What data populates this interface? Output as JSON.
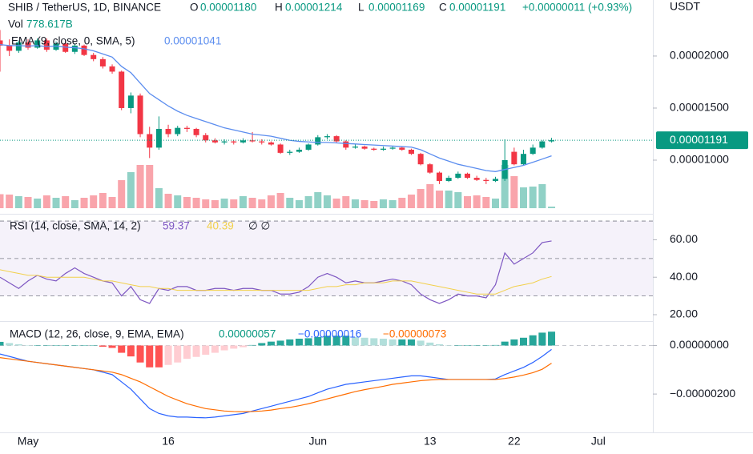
{
  "chart_data": [
    {
      "type": "candlestick",
      "title": "SHIB / TetherUS, 1D, BINANCE",
      "ohlc_legend": [
        {
          "key": "O",
          "value": "0.00001180"
        },
        {
          "key": "H",
          "value": "0.00001214"
        },
        {
          "key": "L",
          "value": "0.00001169"
        },
        {
          "key": "C",
          "value": "0.00001191"
        }
      ],
      "change": "+0.00000011 (+0.93%)",
      "currency": "USDT",
      "up_color": "#089981",
      "down_color": "#f23645",
      "categories": [
        null,
        null,
        null,
        "May",
        null,
        null,
        null,
        null,
        null,
        null,
        null,
        null,
        null,
        null,
        null,
        null,
        null,
        null,
        "16",
        null,
        null,
        null,
        null,
        null,
        null,
        null,
        null,
        null,
        null,
        null,
        null,
        null,
        null,
        null,
        "Jun",
        null,
        null,
        null,
        null,
        null,
        null,
        null,
        null,
        null,
        null,
        null,
        "13",
        null,
        null,
        null,
        null,
        null,
        null,
        null,
        null,
        "22",
        null,
        null,
        null,
        null,
        null,
        null,
        null,
        null,
        "Jul"
      ],
      "open": [
        2.15e-05,
        2.1e-05,
        2.05e-05,
        2.13e-05,
        2.08e-05,
        2.15e-05,
        2.06e-05,
        2.12e-05,
        2.04e-05,
        2.1e-05,
        2.01e-05,
        1.97e-05,
        1.9e-05,
        1.85e-05,
        1.5e-05,
        1.62e-05,
        1.25e-05,
        1.12e-05,
        1.3e-05,
        1.25e-05,
        1.31e-05,
        1.3e-05,
        1.24e-05,
        1.19e-05,
        1.17e-05,
        1.18e-05,
        1.17e-05,
        1.19e-05,
        1.18e-05,
        1.17e-05,
        1.15e-05,
        1.07e-05,
        1.08e-05,
        1.1e-05,
        1.15e-05,
        1.22e-05,
        1.23e-05,
        1.18e-05,
        1.12e-05,
        1.13e-05,
        1.11e-05,
        1.1e-05,
        1.11e-05,
        1.12e-05,
        1.1e-05,
        1.06e-05,
        9.6e-06,
        8.8e-06,
        8e-06,
        8.3e-06,
        8.7e-06,
        8.3e-06,
        8.1e-06,
        8e-06,
        8.2e-06,
        1.08e-05,
        9.6e-06,
        1.06e-05,
        1.12e-05,
        1.18e-05,
        null,
        null,
        null,
        null,
        null
      ],
      "high": [
        2.25e-05,
        2.16e-05,
        2.15e-05,
        2.16e-05,
        2.17e-05,
        2.17e-05,
        2.14e-05,
        2.15e-05,
        2.12e-05,
        2.11e-05,
        2.03e-05,
        1.99e-05,
        1.92e-05,
        1.86e-05,
        1.65e-05,
        1.64e-05,
        1.32e-05,
        1.42e-05,
        1.34e-05,
        1.33e-05,
        1.33e-05,
        1.31e-05,
        1.26e-05,
        1.21e-05,
        1.2e-05,
        1.19e-05,
        1.21e-05,
        1.27e-05,
        1.2e-05,
        1.18e-05,
        1.16e-05,
        1.1e-05,
        1.12e-05,
        1.16e-05,
        1.24e-05,
        1.25e-05,
        1.24e-05,
        1.19e-05,
        1.15e-05,
        1.14e-05,
        1.12e-05,
        1.13e-05,
        1.13e-05,
        1.13e-05,
        1.11e-05,
        1.07e-05,
        9.7e-06,
        8.9e-06,
        8.5e-06,
        8.9e-06,
        8.8e-06,
        8.5e-06,
        8.3e-06,
        8.4e-06,
        1.2e-05,
        1.12e-05,
        1.1e-05,
        1.15e-05,
        1.19e-05,
        1.214e-05,
        null,
        null,
        null,
        null,
        null
      ],
      "low": [
        1.85e-05,
        2e-05,
        2.03e-05,
        2.06e-05,
        2.07e-05,
        2.04e-05,
        2.05e-05,
        2.03e-05,
        2.02e-05,
        2e-05,
        1.95e-05,
        1.88e-05,
        1.83e-05,
        1.48e-05,
        1.45e-05,
        1.22e-05,
        1.02e-05,
        1.1e-05,
        1.22e-05,
        1.23e-05,
        1.27e-05,
        1.22e-05,
        1.17e-05,
        1.16e-05,
        1.15e-05,
        1.15e-05,
        1.16e-05,
        1.17e-05,
        1.15e-05,
        1.14e-05,
        1.06e-05,
        1.05e-05,
        1.07e-05,
        1.09e-05,
        1.14e-05,
        1.2e-05,
        1.17e-05,
        1.1e-05,
        1.11e-05,
        1.1e-05,
        1.09e-05,
        1.09e-05,
        1.1e-05,
        1.09e-05,
        1.05e-05,
        9.5e-06,
        8.7e-06,
        7.7e-06,
        7.9e-06,
        8.2e-06,
        8.2e-06,
        8e-06,
        7.7e-06,
        7.9e-06,
        8e-06,
        9.5e-06,
        9.5e-06,
        1.05e-05,
        1.11e-05,
        1.169e-05,
        null,
        null,
        null,
        null,
        null
      ],
      "close": [
        2.1e-05,
        2.05e-05,
        2.13e-05,
        2.08e-05,
        2.15e-05,
        2.06e-05,
        2.12e-05,
        2.04e-05,
        2.1e-05,
        2.01e-05,
        1.97e-05,
        1.9e-05,
        1.85e-05,
        1.5e-05,
        1.62e-05,
        1.25e-05,
        1.12e-05,
        1.3e-05,
        1.25e-05,
        1.31e-05,
        1.3e-05,
        1.24e-05,
        1.19e-05,
        1.17e-05,
        1.18e-05,
        1.17e-05,
        1.19e-05,
        1.18e-05,
        1.17e-05,
        1.15e-05,
        1.07e-05,
        1.08e-05,
        1.1e-05,
        1.15e-05,
        1.22e-05,
        1.23e-05,
        1.18e-05,
        1.12e-05,
        1.13e-05,
        1.11e-05,
        1.1e-05,
        1.11e-05,
        1.12e-05,
        1.1e-05,
        1.06e-05,
        9.6e-06,
        8.8e-06,
        8e-06,
        8.3e-06,
        8.7e-06,
        8.3e-06,
        8.1e-06,
        8e-06,
        8.2e-06,
        1e-05,
        9.6e-06,
        1.06e-05,
        1.12e-05,
        1.18e-05,
        1.191e-05,
        null,
        null,
        null,
        null,
        null
      ],
      "ema": {
        "name": "EMA (9, close, 0, SMA, 5)",
        "value_label": "0.00001041",
        "color": "#5b8def",
        "values": [
          2.11e-05,
          2.1e-05,
          2.1e-05,
          2.095e-05,
          2.1e-05,
          2.09e-05,
          2.095e-05,
          2.085e-05,
          2.08e-05,
          2.07e-05,
          2.05e-05,
          2.02e-05,
          1.99e-05,
          1.9e-05,
          1.84e-05,
          1.74e-05,
          1.64e-05,
          1.58e-05,
          1.52e-05,
          1.47e-05,
          1.43e-05,
          1.4e-05,
          1.37e-05,
          1.34e-05,
          1.31e-05,
          1.29e-05,
          1.27e-05,
          1.25e-05,
          1.24e-05,
          1.23e-05,
          1.21e-05,
          1.19e-05,
          1.18e-05,
          1.175e-05,
          1.17e-05,
          1.17e-05,
          1.165e-05,
          1.16e-05,
          1.155e-05,
          1.15e-05,
          1.145e-05,
          1.14e-05,
          1.135e-05,
          1.13e-05,
          1.125e-05,
          1.1e-05,
          1.06e-05,
          1.02e-05,
          9.9e-06,
          9.6e-06,
          9.4e-06,
          9.2e-06,
          9e-06,
          8.9e-06,
          9.1e-06,
          9.3e-06,
          9.5e-06,
          9.8e-06,
          1.01e-05,
          1.041e-05,
          null,
          null,
          null,
          null,
          null
        ]
      },
      "volume": {
        "name": "Vol",
        "value_label": "778.617B",
        "values": [
          7000,
          6800,
          6000,
          5600,
          4800,
          6400,
          5200,
          6000,
          4000,
          5200,
          6400,
          7600,
          5600,
          14000,
          18000,
          21600,
          21600,
          10000,
          7200,
          6400,
          5600,
          5200,
          4400,
          4000,
          4800,
          4400,
          6000,
          5200,
          4400,
          6400,
          7600,
          5200,
          4000,
          6000,
          8000,
          6400,
          4800,
          6000,
          4400,
          4000,
          3600,
          4400,
          4000,
          5200,
          6800,
          9600,
          12000,
          8800,
          8800,
          8000,
          6000,
          6400,
          5600,
          4800,
          21600,
          16000,
          10400,
          10800,
          12000,
          778.617,
          null,
          null,
          null,
          null,
          null
        ]
      },
      "ylim": [
        5e-06,
        2.538e-05
      ],
      "yticks": [
        {
          "value": 2e-05,
          "label": "0.00002000"
        },
        {
          "value": 1.5e-05,
          "label": "0.00001500"
        },
        {
          "value": 1e-05,
          "label": "0.00001000"
        }
      ]
    },
    {
      "type": "line",
      "title": "RSI (14, close, SMA, 14, 2)",
      "extra": "∅ ∅",
      "series": [
        {
          "value_label": "59.37",
          "color": "#7e57c2",
          "values": [
            40,
            37,
            34,
            38,
            41,
            39,
            38,
            42,
            45,
            42,
            40,
            38,
            37,
            30,
            35,
            28,
            26,
            34,
            33,
            35,
            35,
            33,
            33,
            34,
            34,
            33,
            34,
            34,
            33,
            33,
            31,
            31,
            32,
            35,
            40,
            42,
            40,
            37,
            38,
            37,
            37,
            38,
            39,
            38,
            36,
            31,
            28,
            26,
            28,
            31,
            30,
            30,
            29,
            36,
            53,
            47,
            50,
            53,
            58.5,
            59.37,
            null,
            null,
            null,
            null,
            null
          ]
        },
        {
          "value_label": "40.39",
          "color": "#f2d04b",
          "values": [
            44,
            43,
            42,
            41,
            41,
            40,
            40,
            40,
            40,
            40,
            39,
            38,
            38,
            37,
            36,
            35,
            35,
            34,
            34,
            33,
            33,
            33,
            33,
            33,
            33,
            33,
            33,
            33,
            33,
            33,
            33,
            33,
            33,
            33,
            34,
            35,
            35,
            36,
            36,
            37,
            37,
            37,
            38,
            38,
            38,
            37,
            36,
            35,
            34,
            33,
            32,
            31,
            31,
            31,
            33,
            35,
            36,
            37,
            39,
            40.39,
            null,
            null,
            null,
            null,
            null
          ]
        }
      ],
      "bands": [
        70,
        50,
        30
      ],
      "band_color": "#7e57c2",
      "ylim": [
        17,
        72.6
      ],
      "yticks": [
        {
          "value": 60,
          "label": "60.00"
        },
        {
          "value": 40,
          "label": "40.00"
        },
        {
          "value": 20,
          "label": "20.00"
        }
      ]
    },
    {
      "type": "macd",
      "title": "MACD (12, 26, close, 9, EMA, EMA)",
      "histogram": {
        "value_label": "0.00000057",
        "color": "#089981",
        "values": [
          1.5e-07,
          1e-07,
          5e-08,
          0,
          0,
          0,
          0,
          0,
          0,
          0,
          0,
          -5e-08,
          -1e-07,
          -3e-07,
          -4.5e-07,
          -7e-07,
          -9e-07,
          -9e-07,
          -8e-07,
          -7e-07,
          -5.5e-07,
          -4.7e-07,
          -3.8e-07,
          -3e-07,
          -2e-07,
          -1.3e-07,
          -7e-08,
          2e-08,
          1e-07,
          1.6e-07,
          2e-07,
          2.5e-07,
          2.8e-07,
          3e-07,
          3.5e-07,
          4e-07,
          4e-07,
          4e-07,
          3.5e-07,
          3.2e-07,
          3e-07,
          2.8e-07,
          2.5e-07,
          2.5e-07,
          2.5e-07,
          2e-07,
          1.2e-07,
          5e-08,
          0,
          0,
          0,
          0,
          0,
          2e-08,
          1.6e-07,
          2.5e-07,
          3.2e-07,
          4.2e-07,
          5.3e-07,
          5.7e-07,
          null,
          null,
          null,
          null,
          null
        ]
      },
      "series": [
        {
          "value_label": "−0.00000016",
          "color": "#2962ff",
          "values": [
            -3.5e-07,
            -4.5e-07,
            -5.5e-07,
            -6.5e-07,
            -7e-07,
            -7.5e-07,
            -8e-07,
            -8.5e-07,
            -9e-07,
            -9.5e-07,
            -1e-06,
            -1.1e-06,
            -1.2e-06,
            -1.5e-06,
            -1.8e-06,
            -2.2e-06,
            -2.6e-06,
            -2.8e-06,
            -2.9e-06,
            -2.95e-06,
            -2.95e-06,
            -2.97e-06,
            -2.98e-06,
            -2.95e-06,
            -2.9e-06,
            -2.85e-06,
            -2.8e-06,
            -2.7e-06,
            -2.6e-06,
            -2.5e-06,
            -2.4e-06,
            -2.3e-06,
            -2.2e-06,
            -2.1e-06,
            -1.95e-06,
            -1.8e-06,
            -1.7e-06,
            -1.6e-06,
            -1.55e-06,
            -1.5e-06,
            -1.45e-06,
            -1.4e-06,
            -1.35e-06,
            -1.3e-06,
            -1.25e-06,
            -1.25e-06,
            -1.3e-06,
            -1.35e-06,
            -1.4e-06,
            -1.4e-06,
            -1.4e-06,
            -1.4e-06,
            -1.4e-06,
            -1.38e-06,
            -1.2e-06,
            -1.05e-06,
            -9e-07,
            -7e-07,
            -4.5e-07,
            -1.6e-07,
            null,
            null,
            null,
            null,
            null
          ]
        },
        {
          "value_label": "−0.00000073",
          "color": "#ff6d00",
          "values": [
            -5e-07,
            -5.5e-07,
            -6e-07,
            -6.5e-07,
            -7e-07,
            -7.5e-07,
            -8e-07,
            -8.5e-07,
            -9e-07,
            -9.5e-07,
            -1e-06,
            -1.05e-06,
            -1.1e-06,
            -1.2e-06,
            -1.35e-06,
            -1.5e-06,
            -1.7e-06,
            -1.9e-06,
            -2.1e-06,
            -2.25e-06,
            -2.4e-06,
            -2.5e-06,
            -2.6e-06,
            -2.65e-06,
            -2.7e-06,
            -2.72e-06,
            -2.73e-06,
            -2.72e-06,
            -2.7e-06,
            -2.66e-06,
            -2.6e-06,
            -2.55e-06,
            -2.48e-06,
            -2.4e-06,
            -2.3e-06,
            -2.2e-06,
            -2.1e-06,
            -2e-06,
            -1.9e-06,
            -1.82e-06,
            -1.75e-06,
            -1.68e-06,
            -1.6e-06,
            -1.55e-06,
            -1.5e-06,
            -1.45e-06,
            -1.42e-06,
            -1.4e-06,
            -1.4e-06,
            -1.4e-06,
            -1.4e-06,
            -1.4e-06,
            -1.4e-06,
            -1.4e-06,
            -1.36e-06,
            -1.3e-06,
            -1.22e-06,
            -1.12e-06,
            -9.8e-07,
            -7.3e-07,
            null,
            null,
            null,
            null,
            null
          ]
        }
      ],
      "ylim": [
        -3.58e-06,
        9.4e-07
      ],
      "yticks": [
        {
          "value": 0,
          "label": "0.00000000"
        },
        {
          "value": -2e-06,
          "label": "−0.00000200"
        }
      ]
    }
  ]
}
